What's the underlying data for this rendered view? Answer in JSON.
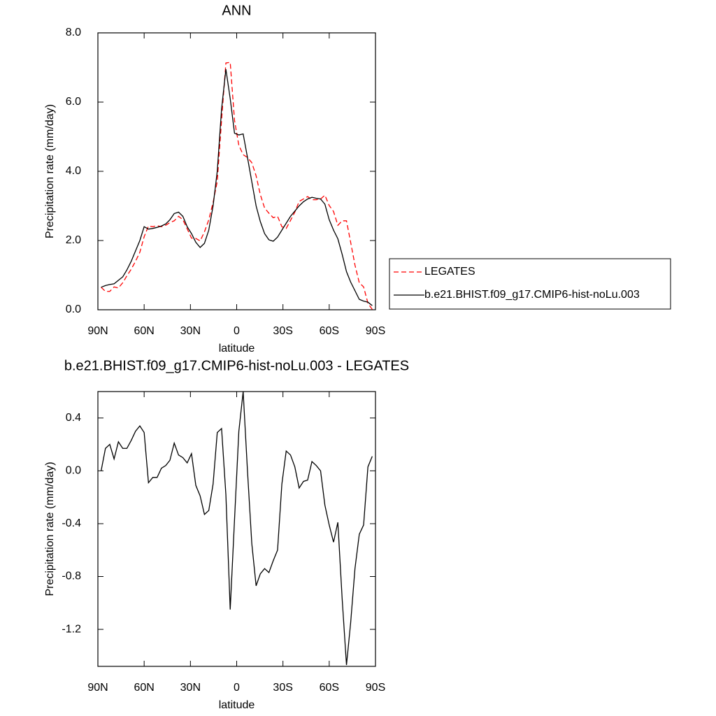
{
  "chart_data": [
    {
      "type": "line",
      "title": "ANN",
      "xlabel": "latitude",
      "ylabel": "Precipitation rate (mm/day)",
      "x": [
        87.9,
        85.1,
        82.3,
        79.5,
        76.7,
        73.9,
        71.2,
        68.4,
        65.6,
        62.8,
        60.0,
        57.2,
        54.4,
        51.6,
        48.8,
        46.0,
        43.3,
        40.5,
        37.7,
        34.9,
        32.1,
        29.3,
        26.5,
        23.7,
        20.9,
        18.1,
        15.3,
        12.6,
        9.8,
        7.0,
        4.2,
        1.4,
        -1.4,
        -4.2,
        -7.0,
        -9.8,
        -12.6,
        -15.3,
        -18.1,
        -20.9,
        -23.7,
        -26.5,
        -29.3,
        -32.1,
        -34.9,
        -37.7,
        -40.5,
        -43.3,
        -46.0,
        -48.8,
        -51.6,
        -54.4,
        -57.2,
        -60.0,
        -62.8,
        -65.6,
        -68.4,
        -71.2,
        -73.9,
        -76.7,
        -79.5,
        -82.3,
        -85.1,
        -87.9
      ],
      "series": [
        {
          "name": "LEGATES",
          "color": "#ff0000",
          "dashed": true,
          "values": [
            0.65,
            0.53,
            0.53,
            0.66,
            0.63,
            0.78,
            0.98,
            1.17,
            1.4,
            1.66,
            2.11,
            2.42,
            2.4,
            2.43,
            2.4,
            2.44,
            2.52,
            2.57,
            2.7,
            2.6,
            2.34,
            2.07,
            2.06,
            1.99,
            2.25,
            2.6,
            3.1,
            3.71,
            5.48,
            7.13,
            7.15,
            5.47,
            4.75,
            4.48,
            4.4,
            4.25,
            3.87,
            3.33,
            2.94,
            2.79,
            2.66,
            2.7,
            2.4,
            2.35,
            2.58,
            2.82,
            3.13,
            3.2,
            3.27,
            3.18,
            3.18,
            3.2,
            3.31,
            3.01,
            2.84,
            2.44,
            2.57,
            2.57,
            1.95,
            1.29,
            0.78,
            0.66,
            0.19,
            0.01
          ]
        },
        {
          "name": "b.e21.BHIST.f09_g17.CMIP6-hist-noLu.003",
          "color": "#000000",
          "dashed": false,
          "values": [
            0.65,
            0.7,
            0.73,
            0.75,
            0.85,
            0.95,
            1.15,
            1.4,
            1.7,
            2.0,
            2.4,
            2.33,
            2.35,
            2.38,
            2.42,
            2.48,
            2.6,
            2.78,
            2.82,
            2.7,
            2.4,
            2.2,
            1.95,
            1.8,
            1.92,
            2.3,
            3.0,
            4.0,
            5.8,
            6.95,
            6.1,
            5.1,
            5.05,
            5.08,
            4.4,
            3.7,
            3.0,
            2.55,
            2.2,
            2.02,
            1.98,
            2.1,
            2.3,
            2.5,
            2.7,
            2.85,
            3.0,
            3.12,
            3.2,
            3.25,
            3.22,
            3.2,
            3.05,
            2.6,
            2.3,
            2.05,
            1.6,
            1.1,
            0.8,
            0.55,
            0.3,
            0.25,
            0.22,
            0.12
          ]
        }
      ],
      "xlim": [
        90,
        -90
      ],
      "xticks": [
        {
          "value": 90,
          "label": "90N"
        },
        {
          "value": 60,
          "label": "60N"
        },
        {
          "value": 30,
          "label": "30N"
        },
        0,
        {
          "value": -30,
          "label": "30S"
        },
        {
          "value": -60,
          "label": "60S"
        },
        {
          "value": -90,
          "label": "90S"
        }
      ],
      "ylim": [
        0,
        8
      ],
      "yticks": [
        {
          "value": 0,
          "label": "0.0"
        },
        {
          "value": 2,
          "label": "2.0"
        },
        {
          "value": 4,
          "label": "4.0"
        },
        {
          "value": 6,
          "label": "6.0"
        },
        {
          "value": 8,
          "label": "8.0"
        }
      ],
      "legend": "outside-right"
    },
    {
      "type": "line",
      "title": "b.e21.BHIST.f09_g17.CMIP6-hist-noLu.003 - LEGATES",
      "xlabel": "latitude",
      "ylabel": "Precipitation rate (mm/day)",
      "x": [
        87.9,
        85.1,
        82.3,
        79.5,
        76.7,
        73.9,
        71.2,
        68.4,
        65.6,
        62.8,
        60.0,
        57.2,
        54.4,
        51.6,
        48.8,
        46.0,
        43.3,
        40.5,
        37.7,
        34.9,
        32.1,
        29.3,
        26.5,
        23.7,
        20.9,
        18.1,
        15.3,
        12.6,
        9.8,
        7.0,
        4.2,
        1.4,
        -1.4,
        -4.2,
        -7.0,
        -9.8,
        -12.6,
        -15.3,
        -18.1,
        -20.9,
        -23.7,
        -26.5,
        -29.3,
        -32.1,
        -34.9,
        -37.7,
        -40.5,
        -43.3,
        -46.0,
        -48.8,
        -51.6,
        -54.4,
        -57.2,
        -60.0,
        -62.8,
        -65.6,
        -68.4,
        -71.2,
        -73.9,
        -76.7,
        -79.5,
        -82.3,
        -85.1,
        -87.9
      ],
      "series": [
        {
          "color": "#000000",
          "values": [
            0.0,
            0.17,
            0.2,
            0.09,
            0.22,
            0.17,
            0.17,
            0.23,
            0.3,
            0.34,
            0.29,
            -0.09,
            -0.05,
            -0.05,
            0.02,
            0.04,
            0.08,
            0.21,
            0.12,
            0.1,
            0.06,
            0.13,
            -0.11,
            -0.19,
            -0.33,
            -0.3,
            -0.1,
            0.29,
            0.32,
            -0.18,
            -1.05,
            -0.37,
            0.3,
            0.6,
            0.0,
            -0.55,
            -0.87,
            -0.78,
            -0.74,
            -0.77,
            -0.68,
            -0.6,
            -0.1,
            0.15,
            0.12,
            0.03,
            -0.13,
            -0.08,
            -0.07,
            0.07,
            0.04,
            0.0,
            -0.26,
            -0.41,
            -0.54,
            -0.39,
            -0.97,
            -1.47,
            -1.15,
            -0.74,
            -0.48,
            -0.41,
            0.03,
            0.11
          ]
        }
      ],
      "xlim": [
        90,
        -90
      ],
      "xticks": [
        {
          "value": 90,
          "label": "90N"
        },
        {
          "value": 60,
          "label": "60N"
        },
        {
          "value": 30,
          "label": "30N"
        },
        0,
        {
          "value": -30,
          "label": "30S"
        },
        {
          "value": -60,
          "label": "60S"
        },
        {
          "value": -90,
          "label": "90S"
        }
      ],
      "ylim": [
        -1.48,
        0.6
      ],
      "yticks": [
        -1.2,
        -0.8,
        -0.4,
        {
          "value": 0,
          "label": "0.0"
        },
        0.4
      ]
    }
  ]
}
